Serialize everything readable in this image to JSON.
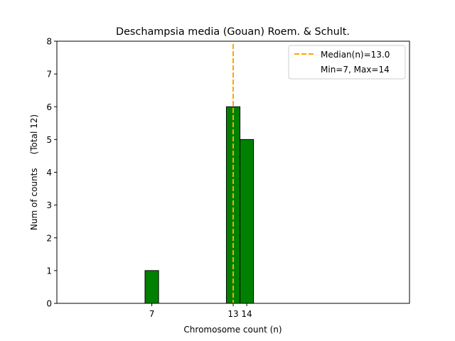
{
  "chart_data": {
    "type": "bar",
    "title": "Deschampsia media (Gouan) Roem. & Schult.",
    "xlabel": "Chromosome count (n)",
    "ylabel": "Num of counts     (Total 12)",
    "xlim": [
      0,
      26
    ],
    "ylim": [
      0,
      8
    ],
    "yticks": [
      0,
      1,
      2,
      3,
      4,
      5,
      6,
      7,
      8
    ],
    "xticks": [
      7,
      13,
      14
    ],
    "bars": [
      {
        "x": 7,
        "value": 1
      },
      {
        "x": 13,
        "value": 6
      },
      {
        "x": 14,
        "value": 5
      }
    ],
    "baseline_end": 17,
    "median": 13.0,
    "legend": {
      "placement": "top-right",
      "entries": [
        "Median(n)=13.0",
        "Min=7, Max=14"
      ]
    },
    "colors": {
      "bar": "#008000",
      "edge": "#000000",
      "median": "#FFA500"
    },
    "grid": false
  }
}
